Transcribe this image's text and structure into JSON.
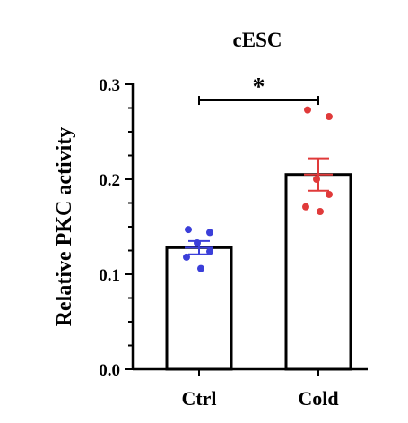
{
  "chart_data": {
    "type": "bar",
    "title": "cESC",
    "xlabel": "",
    "ylabel": "Relative PKC activity",
    "ylim": [
      0,
      0.3
    ],
    "yticks": [
      "0.0",
      "0.1",
      "0.2",
      "0.3"
    ],
    "categories": [
      "Ctrl",
      "Cold"
    ],
    "values": [
      0.128,
      0.205
    ],
    "sem": [
      0.007,
      0.017
    ],
    "points": [
      [
        0.147,
        0.144,
        0.133,
        0.124,
        0.118,
        0.106
      ],
      [
        0.273,
        0.266,
        0.2,
        0.184,
        0.171,
        0.166
      ]
    ],
    "point_colors": [
      "#3B3FD9",
      "#E03A3A"
    ],
    "errorbar_colors": [
      "#3B3FD9",
      "#E03A3A"
    ],
    "bar_fill": "#ffffff",
    "bar_edge": "#000000",
    "significance": {
      "from": "Ctrl",
      "to": "Cold",
      "label": "*",
      "y": 0.283
    },
    "grid": false,
    "legend": "none"
  }
}
